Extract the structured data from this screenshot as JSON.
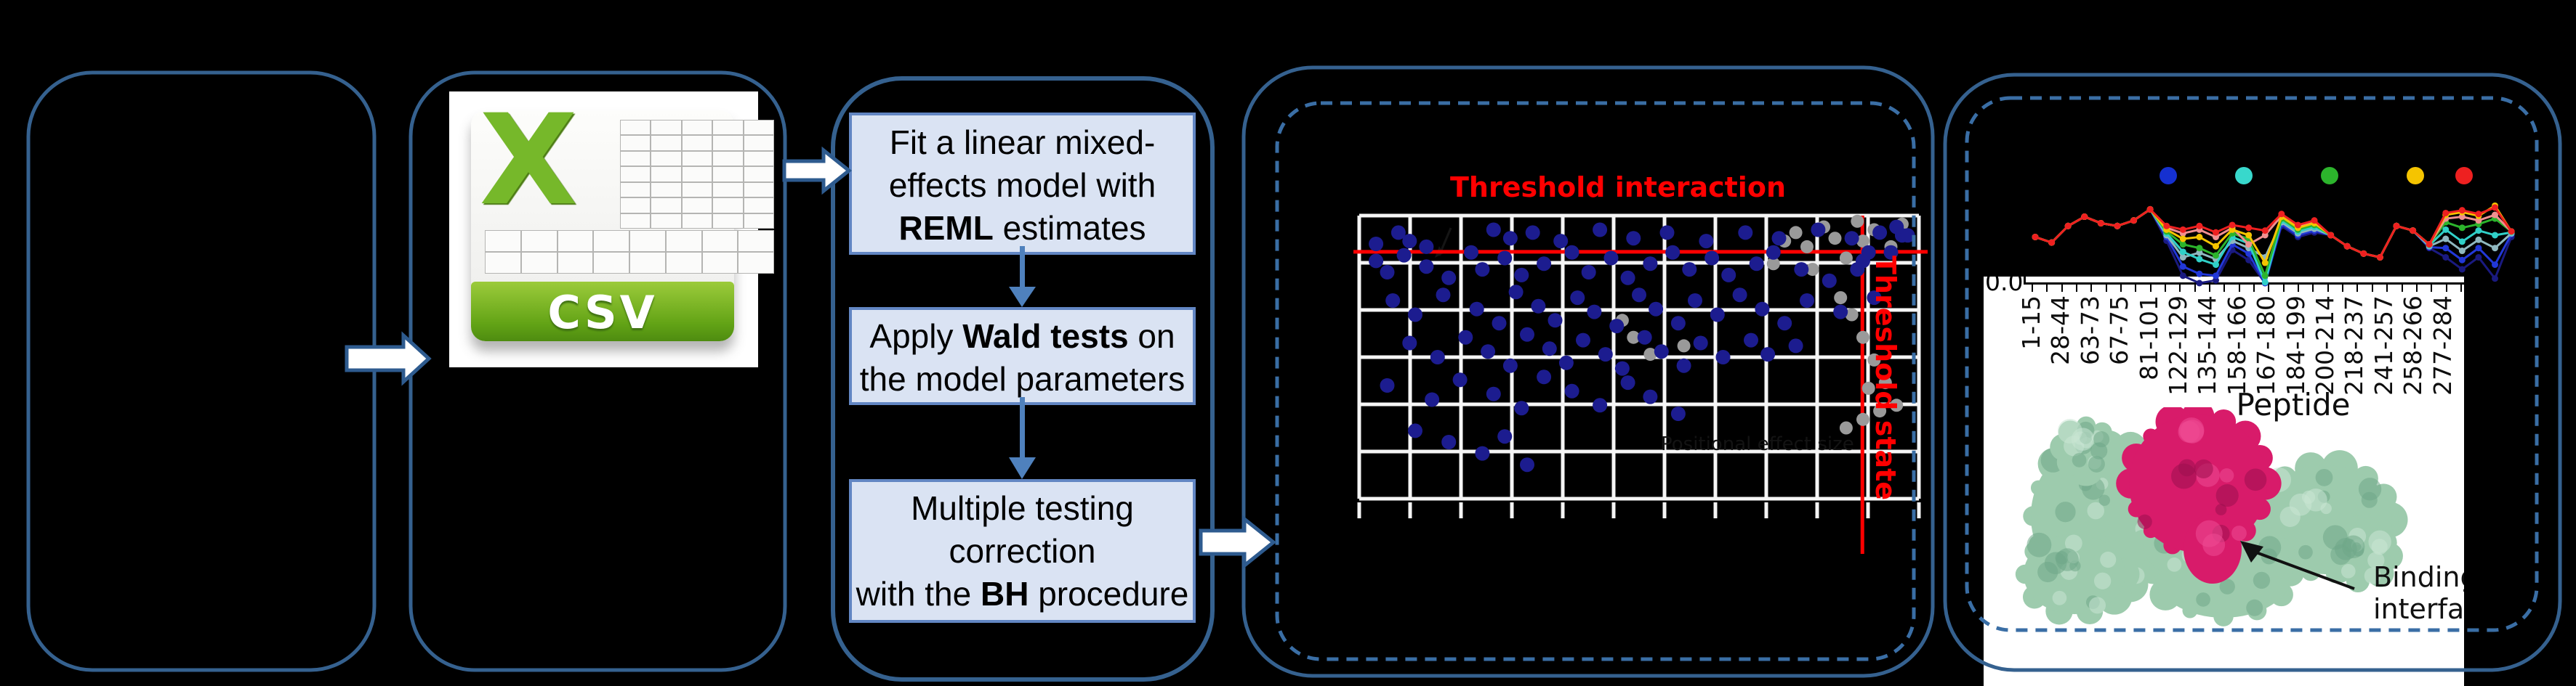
{
  "colors": {
    "background": "#000000",
    "solid_border": "#35618f",
    "dashed_border": "#3a6ea5",
    "block_arrow_fill": "#ffffff",
    "block_arrow_stroke": "#2e5b8f",
    "flow_arrow": "#4f81bd",
    "step_fill": "#dae3f3",
    "step_border": "#6286c3",
    "grid_line": "#f5f5f5",
    "threshold_red": "#ff0000",
    "csv_green": "#76b82a",
    "protein_green": "#9dcbad",
    "protein_green_dark": "#6fa888",
    "protein_green_light": "#c9e6d3",
    "protein_pink": "#d81b6a",
    "protein_pink_dark": "#9c0f4e",
    "protein_pink_light": "#ef4a94"
  },
  "csv_icon": {
    "x_glyph": "X",
    "label": "CSV"
  },
  "workflow": {
    "step1_l1": "Fit a linear mixed-",
    "step1_l2": "effects model with",
    "step1_l3b": "REML",
    "step1_l3r": " estimates",
    "step2_l1a": "Apply ",
    "step2_l1b": "Wald tests",
    "step2_l1c": " on",
    "step2_l2": "the model parameters",
    "step3_l1": "Multiple testing",
    "step3_l2": "correction",
    "step3_l3a": "with the ",
    "step3_l3b": "BH",
    "step3_l3c": " procedure"
  },
  "labels": {
    "threshold_interaction": "Threshold interaction",
    "threshold_state": "Threshold state",
    "positional_effect": "Positional effect size",
    "y_zero": "0.0",
    "peptide": "Peptide",
    "binding_l1": "Binding",
    "binding_l2": "interface"
  },
  "chart_data": [
    {
      "type": "scatter",
      "title": "Threshold interaction",
      "right_axis_label": "Threshold state",
      "hidden_x_label": "Positional effect size",
      "grid": {
        "cols": 11,
        "rows": 6,
        "grid_on": true
      },
      "threshold_interaction_y_pct": 12.8,
      "threshold_state_x_pct": 89.9,
      "series": [
        {
          "name": "interaction-points",
          "color": "#1c1c8f",
          "marker_r": 10,
          "points_pct": [
            [
              7,
              6
            ],
            [
              9,
              9
            ],
            [
              24,
              5
            ],
            [
              27,
              8
            ],
            [
              31,
              6
            ],
            [
              36,
              9
            ],
            [
              43,
              5
            ],
            [
              49,
              8
            ],
            [
              55,
              6
            ],
            [
              62,
              9
            ],
            [
              69,
              6
            ],
            [
              75,
              8
            ],
            [
              82,
              5
            ],
            [
              88,
              8
            ],
            [
              93,
              6
            ],
            [
              97,
              7
            ],
            [
              3,
              10
            ],
            [
              12,
              11
            ],
            [
              3,
              16
            ],
            [
              5,
              20
            ],
            [
              8,
              14
            ],
            [
              12,
              18
            ],
            [
              16,
              22
            ],
            [
              20,
              13
            ],
            [
              22,
              19
            ],
            [
              26,
              15
            ],
            [
              29,
              21
            ],
            [
              33,
              17
            ],
            [
              38,
              13
            ],
            [
              41,
              20
            ],
            [
              45,
              15
            ],
            [
              48,
              22
            ],
            [
              52,
              17
            ],
            [
              56,
              13
            ],
            [
              59,
              19
            ],
            [
              63,
              15
            ],
            [
              66,
              21
            ],
            [
              71,
              17
            ],
            [
              74,
              13
            ],
            [
              79,
              19
            ],
            [
              84,
              23
            ],
            [
              90,
              16
            ],
            [
              95,
              13
            ],
            [
              6,
              30
            ],
            [
              10,
              35
            ],
            [
              15,
              28
            ],
            [
              21,
              33
            ],
            [
              25,
              38
            ],
            [
              28,
              27
            ],
            [
              32,
              32
            ],
            [
              35,
              37
            ],
            [
              39,
              29
            ],
            [
              42,
              34
            ],
            [
              46,
              39
            ],
            [
              50,
              28
            ],
            [
              53,
              33
            ],
            [
              57,
              38
            ],
            [
              60,
              30
            ],
            [
              64,
              35
            ],
            [
              68,
              28
            ],
            [
              72,
              33
            ],
            [
              76,
              38
            ],
            [
              80,
              30
            ],
            [
              86,
              34
            ],
            [
              92,
              29
            ],
            [
              9,
              45
            ],
            [
              14,
              50
            ],
            [
              19,
              43
            ],
            [
              23,
              48
            ],
            [
              27,
              53
            ],
            [
              30,
              42
            ],
            [
              34,
              47
            ],
            [
              37,
              52
            ],
            [
              40,
              44
            ],
            [
              44,
              49
            ],
            [
              47,
              54
            ],
            [
              51,
              43
            ],
            [
              54,
              48
            ],
            [
              58,
              53
            ],
            [
              61,
              45
            ],
            [
              65,
              50
            ],
            [
              70,
              44
            ],
            [
              73,
              49
            ],
            [
              78,
              46
            ],
            [
              5,
              60
            ],
            [
              13,
              65
            ],
            [
              18,
              58
            ],
            [
              24,
              63
            ],
            [
              29,
              68
            ],
            [
              33,
              57
            ],
            [
              38,
              62
            ],
            [
              43,
              67
            ],
            [
              48,
              59
            ],
            [
              52,
              64
            ],
            [
              57,
              70
            ],
            [
              10,
              76
            ],
            [
              16,
              80
            ],
            [
              22,
              84
            ],
            [
              26,
              78
            ],
            [
              30,
              88
            ],
            [
              96,
              4
            ],
            [
              98,
              7
            ],
            [
              91,
              13
            ],
            [
              89,
              19
            ]
          ]
        },
        {
          "name": "state-points",
          "color": "#9a9a9a",
          "marker_r": 9,
          "points_pct": [
            [
              78,
              6
            ],
            [
              80,
              11
            ],
            [
              83,
              4
            ],
            [
              85,
              8
            ],
            [
              87,
              15
            ],
            [
              89,
              2
            ],
            [
              90,
              9
            ],
            [
              92,
              5
            ],
            [
              95,
              11
            ],
            [
              97,
              3
            ],
            [
              81,
              19
            ],
            [
              84,
              23
            ],
            [
              86,
              29
            ],
            [
              88,
              35
            ],
            [
              90,
              43
            ],
            [
              92,
              51
            ],
            [
              94,
              59
            ],
            [
              96,
              67
            ],
            [
              91,
              61
            ],
            [
              93,
              69
            ],
            [
              76,
              9
            ],
            [
              74,
              17
            ],
            [
              47,
              37
            ],
            [
              49,
              43
            ],
            [
              52,
              49
            ],
            [
              58,
              46
            ],
            [
              87,
              75
            ],
            [
              90,
              72
            ]
          ]
        }
      ]
    },
    {
      "type": "line",
      "xlabel": "Peptide",
      "y_tick_label": "0.0",
      "x_tick_labels": [
        "1-15",
        "28-44",
        "63-73",
        "67-75",
        "81-101",
        "122-129",
        "135-144",
        "158-166",
        "167-180",
        "184-199",
        "200-214",
        "218-237",
        "241-257",
        "258-266",
        "277-284"
      ],
      "legend_dot_colors": [
        "#1530d0",
        "#38d8cc",
        "#2cb42c",
        "#f5c400",
        "#ee2020"
      ],
      "ylim": [
        0.0,
        1.0
      ],
      "series": [
        {
          "name": "navy",
          "color": "#1a1a80",
          "values": [
            0.5,
            0.44,
            0.62,
            0.72,
            0.65,
            0.62,
            0.68,
            0.8,
            0.46,
            0.08,
            0.0,
            0.03,
            0.36,
            0.25,
            0.0,
            0.62,
            0.5,
            0.55,
            0.52,
            0.4,
            0.32,
            0.28,
            0.62,
            0.57,
            0.38,
            0.28,
            0.15,
            0.28,
            0.05,
            0.5
          ]
        },
        {
          "name": "blue",
          "color": "#2238d8",
          "values": [
            0.5,
            0.44,
            0.62,
            0.72,
            0.65,
            0.62,
            0.68,
            0.8,
            0.5,
            0.18,
            0.1,
            0.08,
            0.42,
            0.32,
            0.0,
            0.64,
            0.52,
            0.57,
            0.52,
            0.4,
            0.32,
            0.28,
            0.62,
            0.57,
            0.39,
            0.38,
            0.25,
            0.38,
            0.2,
            0.53
          ]
        },
        {
          "name": "steel",
          "color": "#8fb8c0",
          "values": [
            0.5,
            0.44,
            0.62,
            0.72,
            0.65,
            0.62,
            0.68,
            0.8,
            0.52,
            0.28,
            0.33,
            0.26,
            0.46,
            0.38,
            0.28,
            0.66,
            0.54,
            0.59,
            0.52,
            0.4,
            0.32,
            0.28,
            0.62,
            0.57,
            0.4,
            0.48,
            0.35,
            0.47,
            0.38,
            0.54
          ]
        },
        {
          "name": "cyan",
          "color": "#30d0c8",
          "values": [
            0.5,
            0.44,
            0.62,
            0.72,
            0.65,
            0.62,
            0.68,
            0.8,
            0.54,
            0.34,
            0.26,
            0.2,
            0.5,
            0.43,
            0.01,
            0.68,
            0.56,
            0.61,
            0.52,
            0.4,
            0.32,
            0.28,
            0.62,
            0.57,
            0.41,
            0.58,
            0.45,
            0.57,
            0.52,
            0.55
          ]
        },
        {
          "name": "green",
          "color": "#2cb42c",
          "values": [
            0.5,
            0.44,
            0.62,
            0.72,
            0.65,
            0.62,
            0.68,
            0.8,
            0.56,
            0.42,
            0.38,
            0.3,
            0.54,
            0.48,
            0.08,
            0.7,
            0.58,
            0.63,
            0.52,
            0.4,
            0.32,
            0.28,
            0.62,
            0.57,
            0.42,
            0.66,
            0.6,
            0.64,
            0.7,
            0.56
          ]
        },
        {
          "name": "salmon",
          "color": "#f09090",
          "values": [
            0.5,
            0.44,
            0.62,
            0.72,
            0.65,
            0.62,
            0.68,
            0.8,
            0.6,
            0.54,
            0.58,
            0.5,
            0.6,
            0.42,
            0.52,
            0.73,
            0.61,
            0.66,
            0.52,
            0.4,
            0.32,
            0.28,
            0.62,
            0.57,
            0.42,
            0.7,
            0.72,
            0.68,
            0.74,
            0.56
          ]
        },
        {
          "name": "yellow",
          "color": "#f5c400",
          "values": [
            0.5,
            0.44,
            0.62,
            0.72,
            0.65,
            0.62,
            0.68,
            0.8,
            0.58,
            0.48,
            0.5,
            0.4,
            0.58,
            0.52,
            0.22,
            0.72,
            0.6,
            0.65,
            0.52,
            0.4,
            0.32,
            0.28,
            0.62,
            0.57,
            0.42,
            0.74,
            0.77,
            0.73,
            0.84,
            0.56
          ]
        },
        {
          "name": "red",
          "color": "#ee2020",
          "values": [
            0.5,
            0.44,
            0.62,
            0.72,
            0.65,
            0.62,
            0.68,
            0.8,
            0.62,
            0.58,
            0.62,
            0.55,
            0.63,
            0.6,
            0.57,
            0.75,
            0.63,
            0.68,
            0.52,
            0.4,
            0.32,
            0.28,
            0.62,
            0.57,
            0.42,
            0.76,
            0.79,
            0.75,
            0.82,
            0.56
          ]
        }
      ]
    }
  ]
}
